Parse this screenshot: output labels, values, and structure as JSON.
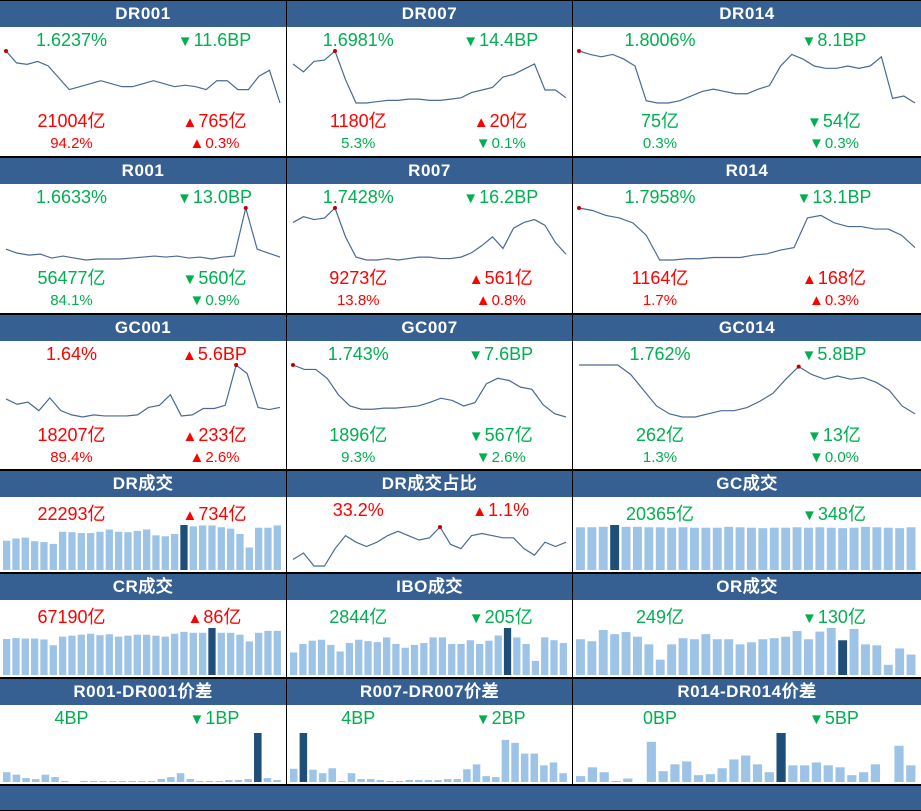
{
  "colors": {
    "header": "#376092",
    "up": "#ff0000",
    "down": "#00b050",
    "bar": "#9dc3e6",
    "bar_highlight": "#1f4e79",
    "line": "#4a6a94",
    "dot": "#c00000"
  },
  "icons": {
    "up": "triangle-up-icon",
    "down": "triangle-down-icon"
  },
  "panels": [
    {
      "title": "DR001",
      "type": "line",
      "main": "1.6237%",
      "main_dir": "down",
      "change": "11.6BP",
      "change_dir": "down",
      "vol": "21004亿",
      "vol_dir": "up",
      "vol_change": "765亿",
      "vol_change_dir": "up",
      "pct": "94.2%",
      "pct_dir": "up",
      "pct_change": "0.3%",
      "pct_change_dir": "up",
      "series": [
        70,
        62,
        61,
        63,
        60,
        52,
        44,
        46,
        48,
        50,
        48,
        46,
        46,
        48,
        50,
        48,
        46,
        47,
        46,
        44,
        50,
        50,
        44,
        44,
        53,
        57,
        35
      ],
      "highlight": 0
    },
    {
      "title": "DR007",
      "type": "line",
      "main": "1.6981%",
      "main_dir": "down",
      "change": "14.4BP",
      "change_dir": "down",
      "vol": "1180亿",
      "vol_dir": "up",
      "vol_change": "20亿",
      "vol_change_dir": "up",
      "pct": "5.3%",
      "pct_dir": "down",
      "pct_change": "0.1%",
      "pct_change_dir": "down",
      "series": [
        60,
        54,
        62,
        63,
        70,
        48,
        30,
        30,
        31,
        32,
        32,
        33,
        33,
        32,
        32,
        33,
        34,
        38,
        40,
        42,
        50,
        52,
        56,
        60,
        40,
        40,
        34
      ],
      "highlight": 4
    },
    {
      "title": "DR014",
      "type": "line",
      "main": "1.8006%",
      "main_dir": "down",
      "change": "8.1BP",
      "change_dir": "down",
      "vol": "75亿",
      "vol_dir": "down",
      "vol_change": "54亿",
      "vol_change_dir": "down",
      "pct": "0.3%",
      "pct_dir": "down",
      "pct_change": "0.3%",
      "pct_change_dir": "down",
      "series": [
        75,
        72,
        70,
        72,
        68,
        62,
        32,
        30,
        30,
        32,
        36,
        40,
        42,
        40,
        38,
        38,
        42,
        45,
        62,
        72,
        68,
        62,
        60,
        60,
        62,
        60,
        62,
        70,
        34,
        36,
        30
      ],
      "highlight": 0
    },
    {
      "title": "R001",
      "type": "line",
      "main": "1.6633%",
      "main_dir": "down",
      "change": "13.0BP",
      "change_dir": "down",
      "vol": "56477亿",
      "vol_dir": "down",
      "vol_change": "560亿",
      "vol_change_dir": "down",
      "pct": "84.1%",
      "pct_dir": "down",
      "pct_change": "0.9%",
      "pct_change_dir": "down",
      "series": [
        40,
        36,
        34,
        35,
        31,
        33,
        31,
        29,
        30,
        30,
        30,
        31,
        32,
        33,
        32,
        33,
        31,
        32,
        30,
        32,
        33,
        82,
        40,
        36,
        32
      ],
      "highlight": 21
    },
    {
      "title": "R007",
      "type": "line",
      "main": "1.7428%",
      "main_dir": "down",
      "change": "16.2BP",
      "change_dir": "down",
      "vol": "9273亿",
      "vol_dir": "up",
      "vol_change": "561亿",
      "vol_change_dir": "up",
      "pct": "13.8%",
      "pct_dir": "up",
      "pct_change": "0.8%",
      "pct_change_dir": "up",
      "series": [
        62,
        66,
        64,
        65,
        72,
        52,
        38,
        36,
        36,
        37,
        36,
        37,
        38,
        38,
        37,
        37,
        38,
        41,
        46,
        52,
        44,
        58,
        62,
        64,
        60,
        48,
        40
      ],
      "highlight": 4
    },
    {
      "title": "R014",
      "type": "line",
      "main": "1.7958%",
      "main_dir": "down",
      "change": "13.1BP",
      "change_dir": "down",
      "vol": "1164亿",
      "vol_dir": "up",
      "vol_change": "168亿",
      "vol_change_dir": "up",
      "pct": "1.7%",
      "pct_dir": "up",
      "pct_change": "0.3%",
      "pct_change_dir": "up",
      "series": [
        72,
        70,
        66,
        64,
        60,
        50,
        30,
        30,
        31,
        31,
        32,
        32,
        32,
        34,
        35,
        38,
        40,
        64,
        66,
        60,
        57,
        57,
        55,
        55,
        50,
        40
      ],
      "highlight": 0
    },
    {
      "title": "GC001",
      "type": "line",
      "main": "1.64%",
      "main_dir": "up",
      "change": "5.6BP",
      "change_dir": "up",
      "vol": "18207亿",
      "vol_dir": "up",
      "vol_change": "233亿",
      "vol_change_dir": "up",
      "pct": "89.4%",
      "pct_dir": "up",
      "pct_change": "2.6%",
      "pct_change_dir": "up",
      "series": [
        42,
        37,
        39,
        31,
        43,
        31,
        27,
        25,
        27,
        26,
        26,
        26,
        27,
        34,
        36,
        46,
        26,
        27,
        33,
        33,
        36,
        74,
        66,
        34,
        32,
        34
      ],
      "highlight": 21
    },
    {
      "title": "GC007",
      "type": "line",
      "main": "1.743%",
      "main_dir": "down",
      "change": "7.6BP",
      "change_dir": "down",
      "vol": "1896亿",
      "vol_dir": "down",
      "vol_change": "567亿",
      "vol_change_dir": "down",
      "pct": "9.3%",
      "pct_dir": "down",
      "pct_change": "2.6%",
      "pct_change_dir": "down",
      "series": [
        72,
        68,
        68,
        60,
        45,
        35,
        32,
        32,
        33,
        33,
        34,
        35,
        38,
        42,
        40,
        35,
        38,
        55,
        60,
        58,
        52,
        50,
        36,
        28,
        25
      ],
      "highlight": 0
    },
    {
      "title": "GC014",
      "type": "line",
      "main": "1.762%",
      "main_dir": "down",
      "change": "5.8BP",
      "change_dir": "down",
      "vol": "262亿",
      "vol_dir": "down",
      "vol_change": "13亿",
      "vol_change_dir": "down",
      "pct": "1.3%",
      "pct_dir": "down",
      "pct_change": "0.0%",
      "pct_change_dir": "down",
      "series": [
        62,
        62,
        62,
        62,
        56,
        46,
        36,
        31,
        29,
        29,
        31,
        33,
        33,
        35,
        39,
        44,
        53,
        61,
        56,
        53,
        55,
        53,
        54,
        51,
        46,
        36,
        31
      ],
      "highlight": 17
    },
    {
      "title": "DR成交",
      "type": "bar",
      "main": "22293亿",
      "main_dir": "up",
      "change": "734亿",
      "change_dir": "up",
      "series": [
        65,
        70,
        72,
        64,
        62,
        58,
        85,
        84,
        82,
        82,
        85,
        90,
        85,
        84,
        87,
        90,
        77,
        75,
        80,
        100,
        97,
        99,
        99,
        95,
        92,
        80,
        50,
        94,
        94,
        99
      ],
      "highlight": 19
    },
    {
      "title": "DR成交占比",
      "type": "line",
      "main": "33.2%",
      "main_dir": "up",
      "change": "1.1%",
      "change_dir": "up",
      "series": [
        30,
        36,
        24,
        24,
        40,
        52,
        46,
        42,
        46,
        52,
        56,
        52,
        48,
        50,
        60,
        44,
        40,
        52,
        54,
        52,
        50,
        50,
        40,
        34,
        46,
        42,
        46
      ],
      "highlight": 14
    },
    {
      "title": "GC成交",
      "type": "bar",
      "main": "20365亿",
      "main_dir": "down",
      "change": "348亿",
      "change_dir": "down",
      "series": [
        95,
        95,
        96,
        100,
        96,
        96,
        95,
        95,
        94,
        95,
        94,
        94,
        94,
        96,
        95,
        94,
        93,
        94,
        94,
        95,
        94,
        95,
        94,
        93,
        94,
        96,
        95,
        94,
        93,
        95
      ],
      "highlight": 3
    },
    {
      "title": "CR成交",
      "type": "bar",
      "main": "67190亿",
      "main_dir": "up",
      "change": "86亿",
      "change_dir": "up",
      "series": [
        75,
        77,
        76,
        76,
        74,
        62,
        80,
        82,
        84,
        86,
        83,
        85,
        80,
        82,
        84,
        84,
        82,
        80,
        86,
        90,
        88,
        88,
        98,
        88,
        88,
        84,
        70,
        88,
        92,
        92
      ],
      "highlight": 22
    },
    {
      "title": "IBO成交",
      "type": "bar",
      "main": "2844亿",
      "main_dir": "down",
      "change": "205亿",
      "change_dir": "down",
      "series": [
        48,
        66,
        73,
        75,
        64,
        50,
        68,
        75,
        72,
        70,
        80,
        66,
        58,
        64,
        68,
        80,
        80,
        66,
        66,
        74,
        66,
        73,
        84,
        100,
        80,
        66,
        30,
        80,
        74,
        68
      ],
      "highlight": 23
    },
    {
      "title": "OR成交",
      "type": "bar",
      "main": "249亿",
      "main_dir": "down",
      "change": "130亿",
      "change_dir": "down",
      "series": [
        70,
        66,
        88,
        80,
        84,
        75,
        60,
        30,
        60,
        72,
        70,
        80,
        70,
        70,
        60,
        64,
        70,
        72,
        75,
        86,
        70,
        85,
        92,
        68,
        90,
        60,
        58,
        20,
        52,
        40
      ],
      "highlight": 23
    },
    {
      "title": "R001-DR001价差",
      "type": "bar",
      "main": "4BP",
      "main_dir": "down",
      "change": "1BP",
      "change_dir": "down",
      "series": [
        20,
        15,
        8,
        6,
        15,
        10,
        2,
        0,
        2,
        2,
        2,
        2,
        2,
        2,
        2,
        2,
        6,
        10,
        18,
        6,
        2,
        2,
        2,
        4,
        4,
        6,
        100,
        8,
        4
      ],
      "highlight": 26
    },
    {
      "title": "R007-DR007价差",
      "type": "bar",
      "main": "4BP",
      "main_dir": "down",
      "change": "2BP",
      "change_dir": "down",
      "series": [
        27,
        100,
        25,
        18,
        28,
        2,
        18,
        6,
        6,
        4,
        2,
        2,
        4,
        4,
        4,
        4,
        6,
        6,
        26,
        36,
        12,
        10,
        86,
        80,
        58,
        58,
        34,
        40,
        18
      ],
      "highlight": 1
    },
    {
      "title": "R014-DR014价差",
      "type": "bar",
      "main": "0BP",
      "main_dir": "down",
      "change": "5BP",
      "change_dir": "down",
      "series": [
        12,
        30,
        20,
        2,
        7,
        0,
        82,
        22,
        36,
        42,
        14,
        16,
        28,
        46,
        54,
        36,
        20,
        100,
        34,
        34,
        40,
        34,
        30,
        14,
        20,
        36,
        0,
        74,
        34
      ],
      "highlight": 17
    }
  ]
}
